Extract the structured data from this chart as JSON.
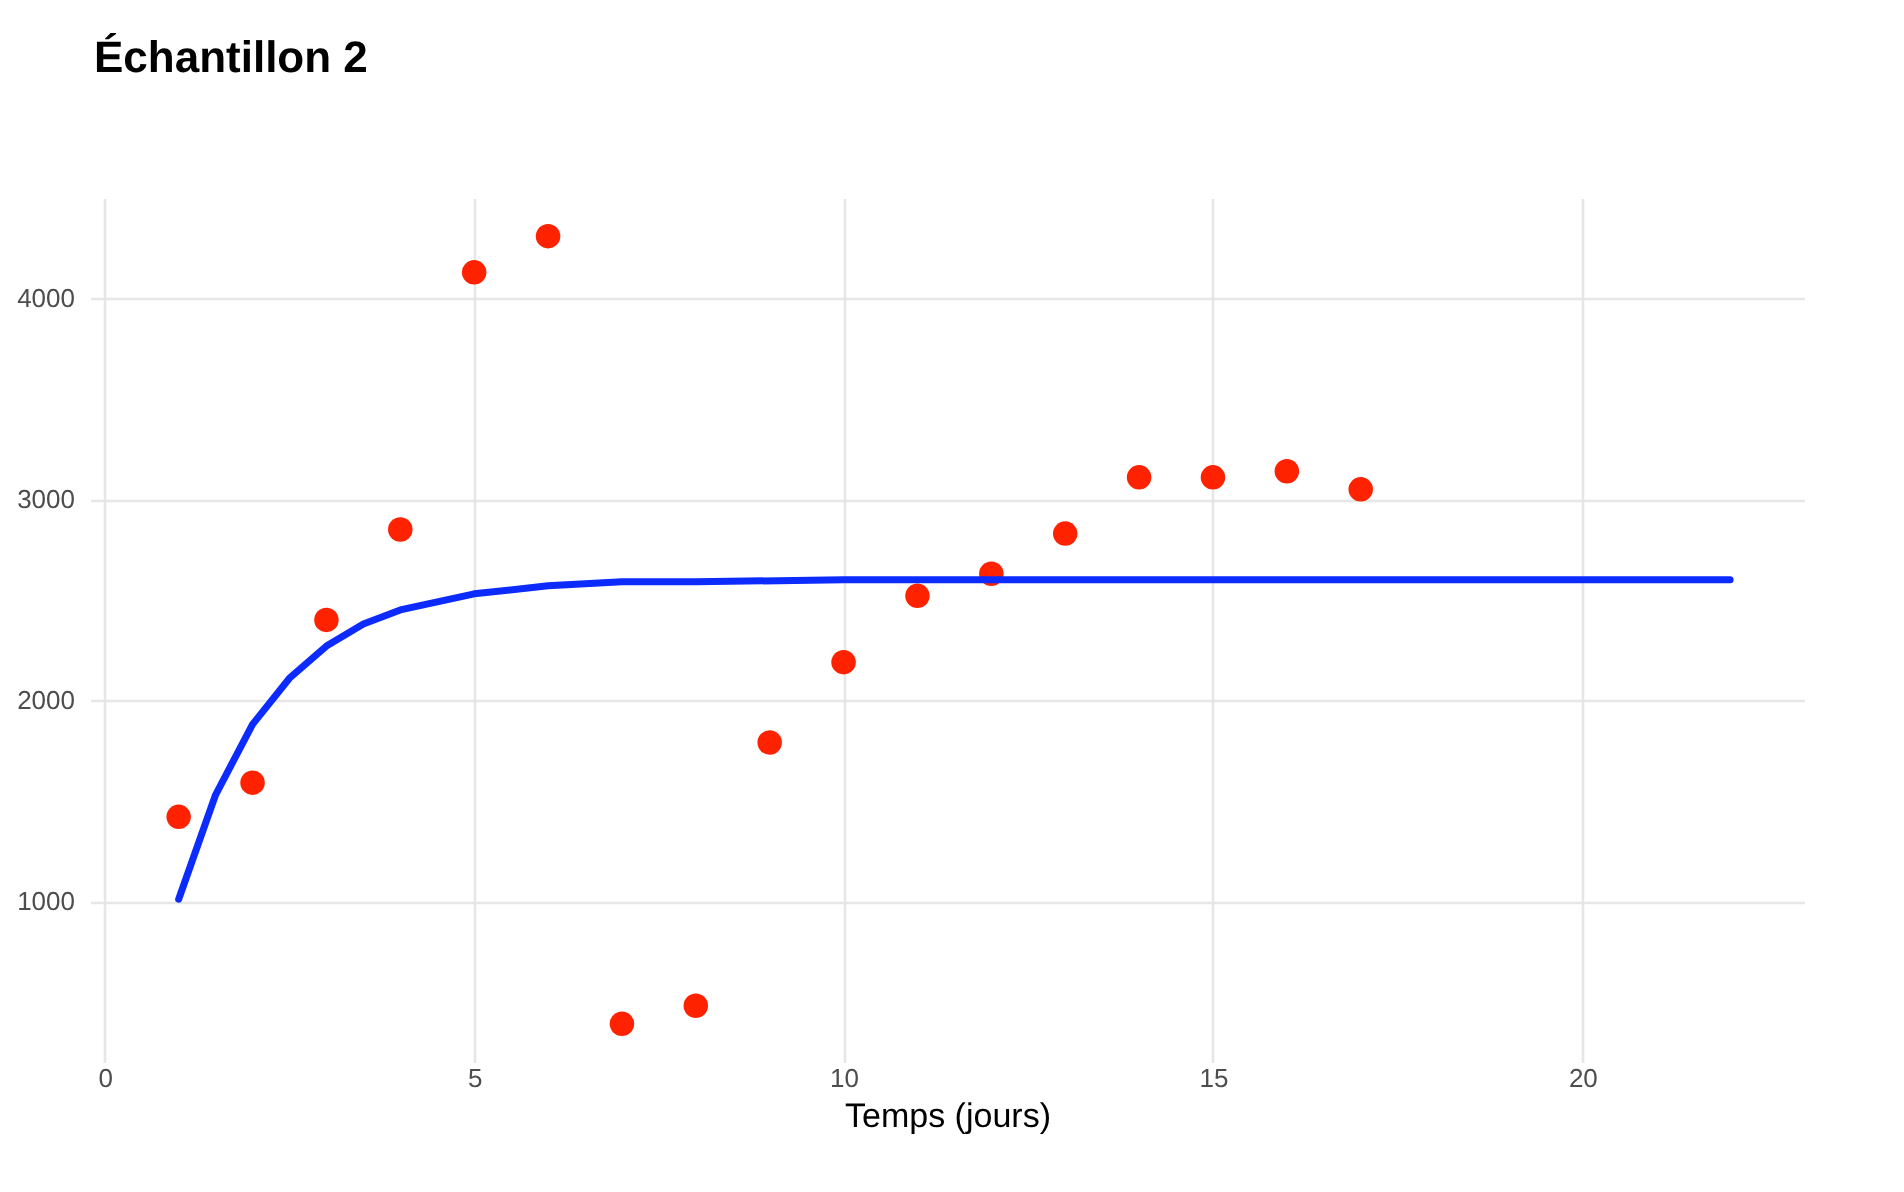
{
  "chart_data": {
    "type": "scatter",
    "title": "Échantillon 2",
    "xlabel": "Temps (jours)",
    "xlim": [
      -0.2,
      23
    ],
    "ylim": [
      200,
      4500
    ],
    "xticks": [
      0,
      5,
      10,
      15,
      20
    ],
    "yticks": [
      1000,
      2000,
      3000,
      4000
    ],
    "grid": true,
    "series": [
      {
        "marker": "circle",
        "color": "#ff2200",
        "x": [
          1,
          2,
          3,
          4,
          5,
          6,
          7,
          8,
          9,
          10,
          11,
          12,
          13,
          14,
          15,
          16,
          17
        ],
        "values": [
          1420,
          1590,
          2400,
          2850,
          4130,
          4310,
          390,
          480,
          1790,
          2190,
          2520,
          2630,
          2830,
          3110,
          3110,
          3140,
          3050
        ]
      },
      {
        "type": "line",
        "color": "#0b2bff",
        "x": [
          1,
          1.5,
          2,
          2.5,
          3,
          3.5,
          4,
          5,
          6,
          7,
          8,
          10,
          22
        ],
        "values": [
          1010,
          1530,
          1880,
          2110,
          2270,
          2380,
          2450,
          2530,
          2570,
          2590,
          2590,
          2600,
          2600
        ]
      }
    ]
  }
}
